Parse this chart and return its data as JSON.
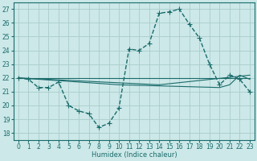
{
  "xlabel": "Humidex (Indice chaleur)",
  "xlim": [
    -0.5,
    23.5
  ],
  "ylim": [
    17.5,
    27.5
  ],
  "yticks": [
    18,
    19,
    20,
    21,
    22,
    23,
    24,
    25,
    26,
    27
  ],
  "xticks": [
    0,
    1,
    2,
    3,
    4,
    5,
    6,
    7,
    8,
    9,
    10,
    11,
    12,
    13,
    14,
    15,
    16,
    17,
    18,
    19,
    20,
    21,
    22,
    23
  ],
  "bg_color": "#cce8e8",
  "grid_color": "#aacccc",
  "line_color": "#1a6b6b",
  "series": [
    {
      "x": [
        0,
        1,
        2,
        3,
        4,
        5,
        6,
        7,
        8,
        9,
        10,
        11,
        12,
        13,
        14,
        15,
        16,
        17,
        18,
        19,
        20,
        21,
        22,
        23
      ],
      "y": [
        22,
        21.9,
        21.3,
        21.3,
        21.7,
        20.0,
        19.6,
        19.4,
        18.4,
        18.7,
        19.8,
        24.1,
        24.0,
        24.5,
        26.7,
        26.8,
        27.0,
        25.9,
        24.9,
        23.0,
        21.5,
        22.2,
        21.9,
        21.0
      ],
      "linestyle": "--",
      "marker": "+",
      "linewidth": 1.0,
      "markersize": 4
    },
    {
      "x": [
        0,
        23
      ],
      "y": [
        22,
        22
      ],
      "linestyle": "-",
      "marker": null,
      "linewidth": 0.8,
      "markersize": 0
    },
    {
      "x": [
        0,
        14,
        23
      ],
      "y": [
        22,
        21.5,
        22.2
      ],
      "linestyle": "-",
      "marker": null,
      "linewidth": 0.8,
      "markersize": 0
    },
    {
      "x": [
        0,
        10,
        20,
        21,
        22,
        23
      ],
      "y": [
        22,
        21.5,
        21.3,
        21.5,
        22.2,
        21.9
      ],
      "linestyle": "-",
      "marker": null,
      "linewidth": 0.8,
      "markersize": 0
    }
  ]
}
